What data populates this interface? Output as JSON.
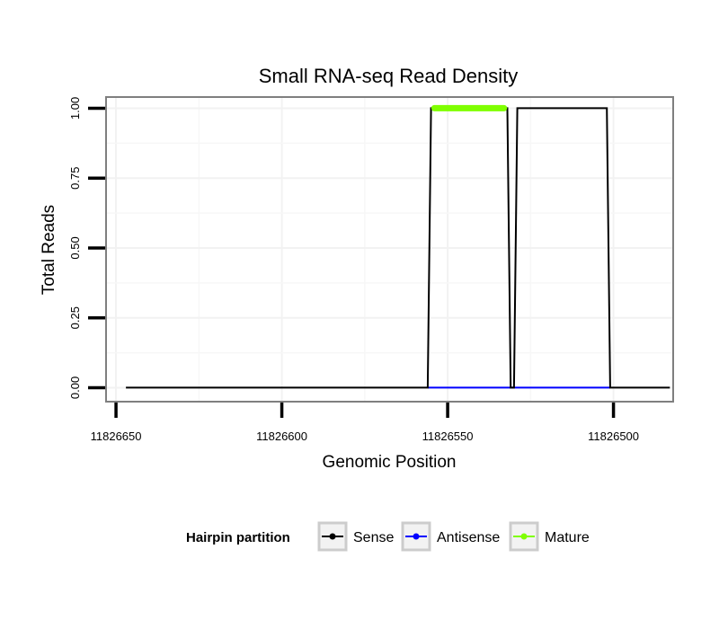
{
  "chart_data": {
    "type": "line",
    "title": "Small RNA-seq Read Density",
    "xlabel": "Genomic Position",
    "ylabel": "Total Reads",
    "x_reversed": true,
    "xlim": [
      11826653,
      11826482
    ],
    "ylim": [
      -0.05,
      1.04
    ],
    "x_ticks": [
      11826650,
      11826600,
      11826550,
      11826500
    ],
    "x_tick_labels": [
      "11826650",
      "11826600",
      "11826550",
      "11826500"
    ],
    "y_ticks": [
      0,
      0.25,
      0.5,
      0.75,
      1.0
    ],
    "y_tick_labels": [
      "0.00",
      "0.25",
      "0.50",
      "0.75",
      "1.00"
    ],
    "grid": true,
    "legend": {
      "title": "Hairpin partition",
      "position": "bottom",
      "entries": [
        {
          "name": "Sense",
          "color": "#000000"
        },
        {
          "name": "Antisense",
          "color": "#0000ff"
        },
        {
          "name": "Mature",
          "color": "#7fff00"
        }
      ]
    },
    "series": [
      {
        "name": "Sense",
        "color": "#000000",
        "x": [
          11826647,
          11826556,
          11826555,
          11826532,
          11826531,
          11826530,
          11826529,
          11826502,
          11826501,
          11826483
        ],
        "y": [
          0,
          0,
          1,
          1,
          0,
          0,
          1,
          1,
          0,
          0
        ]
      },
      {
        "name": "Antisense",
        "color": "#0000ff",
        "x": [
          11826556,
          11826501
        ],
        "y": [
          0,
          0
        ]
      },
      {
        "name": "Mature",
        "color": "#7fff00",
        "x": [
          11826554,
          11826533
        ],
        "y": [
          1,
          1
        ]
      }
    ]
  }
}
